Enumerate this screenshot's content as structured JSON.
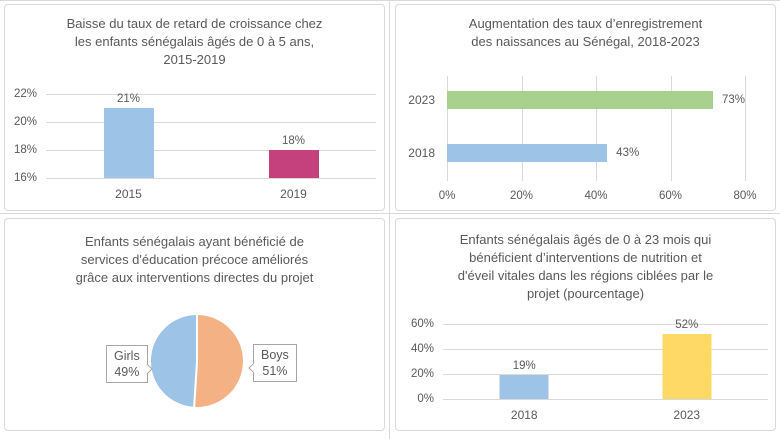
{
  "palette": {
    "text": "#595959",
    "gridline": "#D9D9D9",
    "panel_border": "#D9D9D9",
    "callout_border": "#A6A6A6",
    "background": "#FFFFFF"
  },
  "chart_data": [
    {
      "type": "bar",
      "title": "Baisse du taux de retard de croissance chez les enfants sénégalais âgés de 0 à 5 ans, 2015-2019",
      "title_lines": [
        "Baisse du taux de retard de croissance chez",
        "les enfants sénégalais âgés de 0 à 5 ans,",
        "2015-2019"
      ],
      "categories": [
        "2015",
        "2019"
      ],
      "values": [
        21,
        18
      ],
      "labels": [
        "21%",
        "18%"
      ],
      "bar_colors": [
        "#9DC3E6",
        "#C5417E"
      ],
      "ylim": [
        16,
        22
      ],
      "yticks": [
        "22%",
        "20%",
        "18%",
        "16%"
      ],
      "grid": true,
      "legend": "none"
    },
    {
      "type": "hbar",
      "title": "Augmentation des taux d’enregistrement des naissances au Sénégal, 2018-2023",
      "title_lines": [
        "Augmentation des taux d’enregistrement",
        "des naissances au Sénégal, 2018-2023"
      ],
      "categories": [
        "2023",
        "2018"
      ],
      "values": [
        73,
        43
      ],
      "labels": [
        "73%",
        "43%"
      ],
      "bar_colors": [
        "#A9D18E",
        "#9DC3E6"
      ],
      "xlim": [
        0,
        80
      ],
      "xticks": [
        "0%",
        "20%",
        "40%",
        "60%",
        "80%"
      ],
      "grid": true,
      "legend": "none"
    },
    {
      "type": "pie",
      "title": "Enfants sénégalais ayant bénéficié de services d'éducation précoce améliorés grâce aux interventions directes du projet",
      "title_lines": [
        "Enfants sénégalais ayant bénéficié de",
        "services d'éducation précoce améliorés",
        "grâce aux interventions directes du projet"
      ],
      "slices": [
        {
          "label": "Boys",
          "pct": 51,
          "pct_label": "51%",
          "color": "#F4B183"
        },
        {
          "label": "Girls",
          "pct": 49,
          "pct_label": "49%",
          "color": "#9DC3E6"
        }
      ],
      "legend": "callout-labels"
    },
    {
      "type": "bar",
      "title": "Enfants sénégalais âgés de 0 à 23 mois qui bénéficient d’interventions de nutrition et d'éveil vitales dans les régions ciblées par le projet (pourcentage)",
      "title_lines": [
        "Enfants sénégalais âgés de 0 à 23 mois qui",
        "bénéficient d’interventions de nutrition et",
        "d'éveil vitales dans les régions ciblées par le",
        "projet (pourcentage)"
      ],
      "categories": [
        "2018",
        "2023"
      ],
      "values": [
        19,
        52
      ],
      "labels": [
        "19%",
        "52%"
      ],
      "bar_colors": [
        "#9DC3E6",
        "#FFD966"
      ],
      "ylim": [
        0,
        60
      ],
      "yticks": [
        "60%",
        "40%",
        "20%",
        "0%"
      ],
      "grid": true,
      "legend": "none"
    }
  ]
}
